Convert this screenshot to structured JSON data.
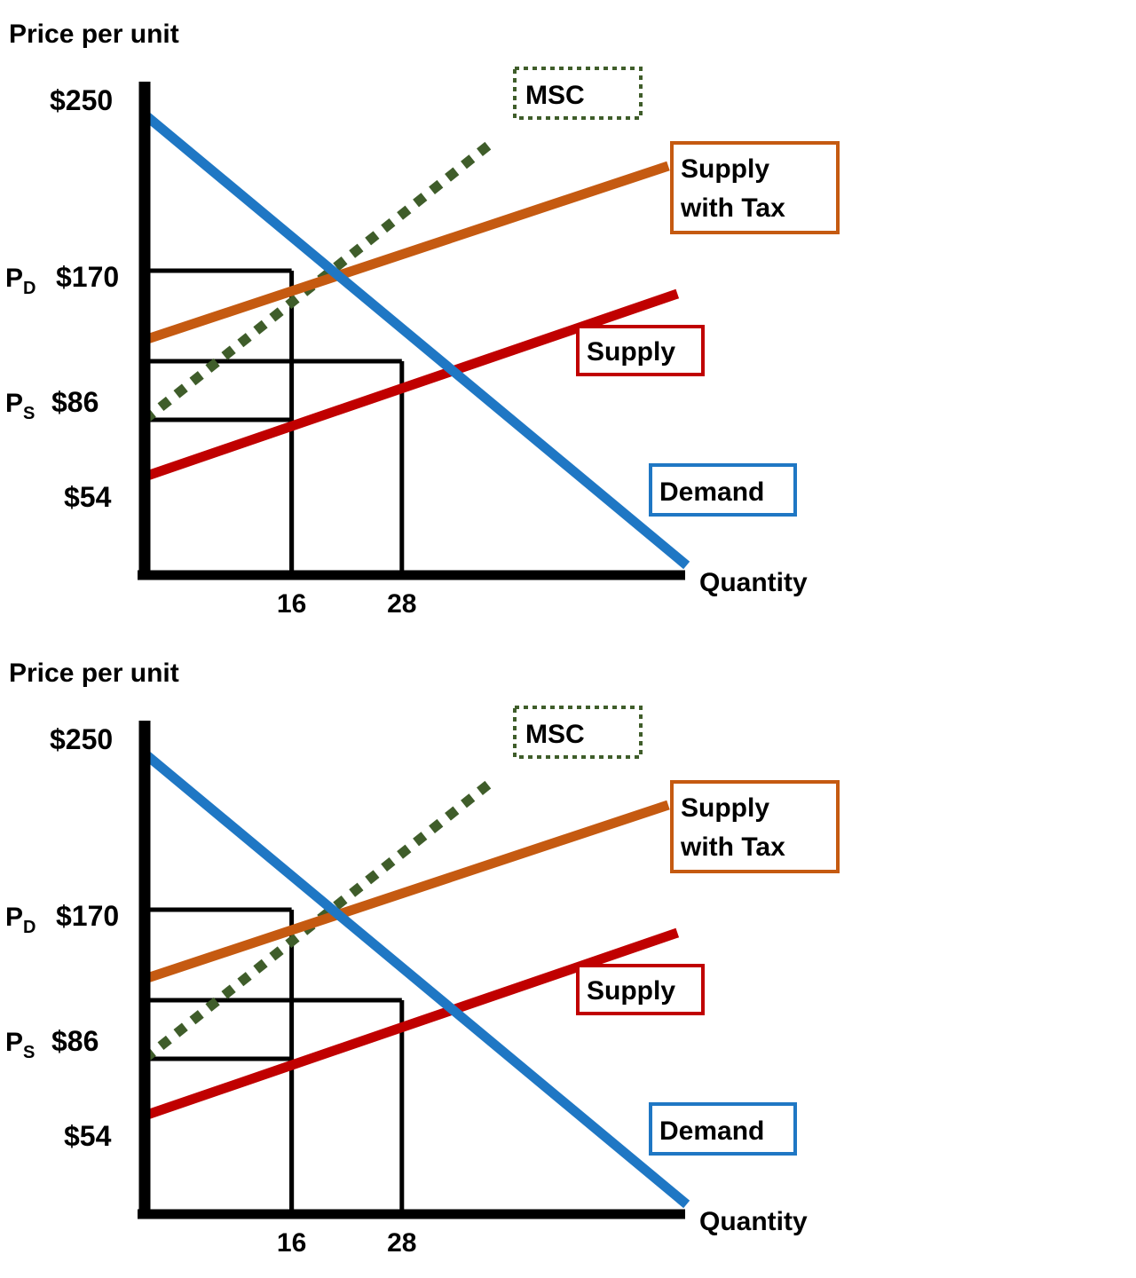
{
  "chart_data": [
    {
      "type": "line",
      "ylabel": "Price per unit",
      "xlabel": "Quantity",
      "y_ticks": [
        {
          "value": 250,
          "label": "$250"
        },
        {
          "value": 170,
          "label": "$170",
          "prefix": "P",
          "sub": "D"
        },
        {
          "value": 86,
          "label": "$86",
          "prefix": "P",
          "sub": "S"
        },
        {
          "value": 54,
          "label": "$54"
        }
      ],
      "x_ticks": [
        {
          "value": 16,
          "label": "16"
        },
        {
          "value": 28,
          "label": "28"
        }
      ],
      "series": [
        {
          "name": "MSC",
          "color": "#3f5d2a",
          "style": "dotted",
          "x": [
            0,
            38
          ],
          "y": [
            86,
            243
          ]
        },
        {
          "name": "Supply with Tax",
          "color": "#c55a11",
          "style": "solid",
          "x": [
            0,
            57
          ],
          "y": [
            131,
            229
          ]
        },
        {
          "name": "Supply",
          "color": "#c00000",
          "style": "solid",
          "x": [
            0,
            58
          ],
          "y": [
            54,
            157
          ]
        },
        {
          "name": "Demand",
          "color": "#1f77c4",
          "style": "solid",
          "x": [
            0,
            59
          ],
          "y": [
            258,
            4
          ]
        }
      ],
      "guides": [
        {
          "x": 16,
          "y": 170
        },
        {
          "x": 16,
          "y": 86
        },
        {
          "x": 28,
          "y": 119
        }
      ],
      "legend_labels": [
        {
          "text": "MSC",
          "series": "MSC",
          "lines": [
            "MSC"
          ]
        },
        {
          "text": "Supply with Tax",
          "series": "Supply with Tax",
          "lines": [
            "Supply",
            "with Tax"
          ]
        },
        {
          "text": "Supply",
          "series": "Supply",
          "lines": [
            "Supply"
          ]
        },
        {
          "text": "Demand",
          "series": "Demand",
          "lines": [
            "Demand"
          ]
        }
      ],
      "grid": false
    },
    {
      "type": "line",
      "ylabel": "Price per unit",
      "xlabel": "Quantity",
      "y_ticks": [
        {
          "value": 250,
          "label": "$250"
        },
        {
          "value": 170,
          "label": "$170",
          "prefix": "P",
          "sub": "D"
        },
        {
          "value": 86,
          "label": "$86",
          "prefix": "P",
          "sub": "S"
        },
        {
          "value": 54,
          "label": "$54"
        }
      ],
      "x_ticks": [
        {
          "value": 16,
          "label": "16"
        },
        {
          "value": 28,
          "label": "28"
        }
      ],
      "series": [
        {
          "name": "MSC",
          "color": "#3f5d2a",
          "style": "dotted",
          "x": [
            0,
            38
          ],
          "y": [
            86,
            243
          ]
        },
        {
          "name": "Supply with Tax",
          "color": "#c55a11",
          "style": "solid",
          "x": [
            0,
            57
          ],
          "y": [
            131,
            229
          ]
        },
        {
          "name": "Supply",
          "color": "#c00000",
          "style": "solid",
          "x": [
            0,
            58
          ],
          "y": [
            54,
            157
          ]
        },
        {
          "name": "Demand",
          "color": "#1f77c4",
          "style": "solid",
          "x": [
            0,
            59
          ],
          "y": [
            258,
            4
          ]
        }
      ],
      "guides": [
        {
          "x": 16,
          "y": 170
        },
        {
          "x": 16,
          "y": 86
        },
        {
          "x": 28,
          "y": 119
        }
      ],
      "legend_labels": [
        {
          "text": "MSC",
          "series": "MSC",
          "lines": [
            "MSC"
          ]
        },
        {
          "text": "Supply with Tax",
          "series": "Supply with Tax",
          "lines": [
            "Supply",
            "with Tax"
          ]
        },
        {
          "text": "Supply",
          "series": "Supply",
          "lines": [
            "Supply"
          ]
        },
        {
          "text": "Demand",
          "series": "Demand",
          "lines": [
            "Demand"
          ]
        }
      ],
      "grid": false
    }
  ]
}
